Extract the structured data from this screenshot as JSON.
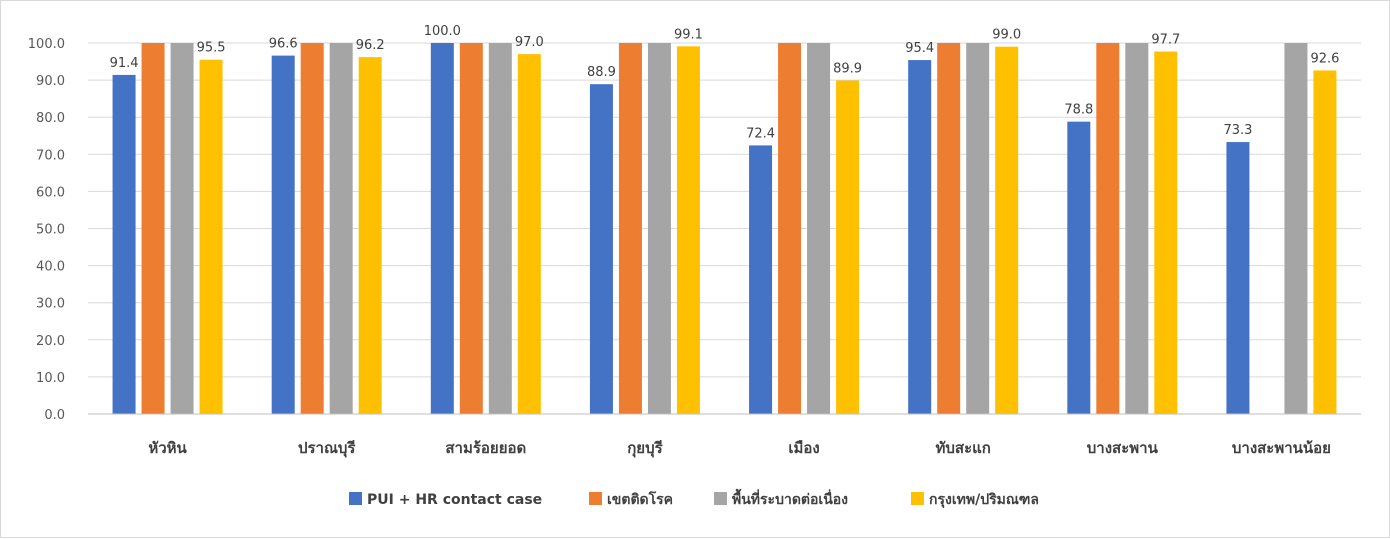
{
  "chart_data": {
    "type": "bar",
    "title": "",
    "xlabel": "",
    "ylabel": "",
    "ylim": [
      0,
      100
    ],
    "yticks": [
      "0.0",
      "10.0",
      "20.0",
      "30.0",
      "40.0",
      "50.0",
      "60.0",
      "70.0",
      "80.0",
      "90.0",
      "100.0"
    ],
    "grid": true,
    "legend_position": "bottom",
    "categories": [
      "หัวหิน",
      "ปราณบุรี",
      "สามร้อยยอด",
      "กุยบุรี",
      "เมือง",
      "ทับสะแก",
      "บางสะพาน",
      "บางสะพานน้อย"
    ],
    "series": [
      {
        "name": "PUI + HR contact case",
        "color": "#4472C4",
        "values": [
          91.4,
          96.6,
          100.0,
          88.9,
          72.4,
          95.4,
          78.8,
          73.3
        ],
        "labels": [
          "91.4",
          "96.6",
          "100.0",
          "88.9",
          "72.4",
          "95.4",
          "78.8",
          "73.3"
        ]
      },
      {
        "name": "เขตติดโรค",
        "color": "#ED7D31",
        "values": [
          100,
          100,
          100,
          100,
          100,
          100,
          100,
          null
        ],
        "labels": [
          null,
          null,
          null,
          null,
          null,
          null,
          null,
          null
        ]
      },
      {
        "name": "พื้นที่ระบาดต่อเนื่อง",
        "color": "#A5A5A5",
        "values": [
          100,
          100,
          100,
          100,
          100,
          100,
          100,
          100
        ],
        "labels": [
          null,
          null,
          null,
          null,
          null,
          null,
          null,
          null
        ]
      },
      {
        "name": "กรุงเทพ/ปริมณฑล",
        "color": "#FFC000",
        "values": [
          95.5,
          96.2,
          97.0,
          99.1,
          89.9,
          99.0,
          97.7,
          92.6
        ],
        "labels": [
          "95.5",
          "96.2",
          "97.0",
          "99.1",
          "89.9",
          "99.0",
          "97.7",
          "92.6"
        ]
      }
    ]
  }
}
